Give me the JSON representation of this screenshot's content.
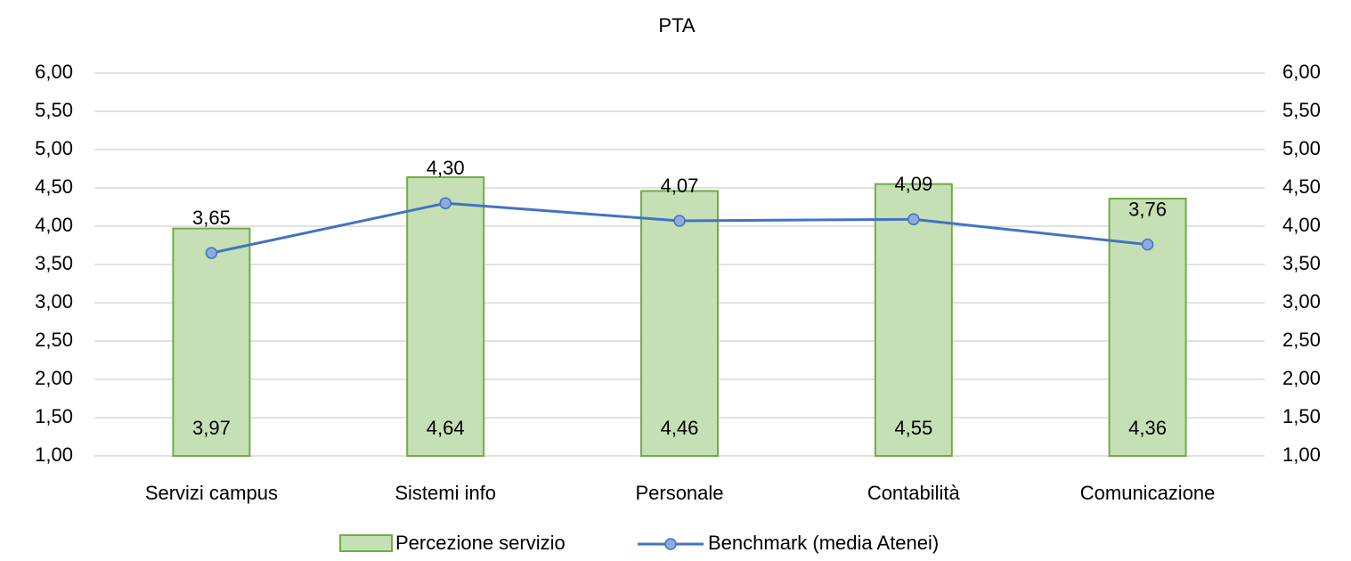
{
  "chart_data": {
    "type": "bar",
    "title": "PTA",
    "categories": [
      "Servizi campus",
      "Sistemi info",
      "Personale",
      "Contabilità",
      "Comunicazione"
    ],
    "series": [
      {
        "name": "Percezione servizio",
        "type": "bar",
        "color": "#c5e0b4",
        "edge_color": "#70ad47",
        "values": [
          3.97,
          4.64,
          4.46,
          4.55,
          4.36
        ],
        "value_labels": [
          "3,97",
          "4,64",
          "4,46",
          "4,55",
          "4,36"
        ]
      },
      {
        "name": "Benchmark (media Atenei)",
        "type": "line",
        "axis": "y2",
        "color": "#4472c4",
        "marker_color": "#8faadc",
        "values": [
          3.65,
          4.3,
          4.07,
          4.09,
          3.76
        ],
        "value_labels": [
          "3,65",
          "4,30",
          "4,07",
          "4,09",
          "3,76"
        ]
      }
    ],
    "ylim": [
      1,
      6
    ],
    "yticks": [
      {
        "value": 1,
        "label": "1,00"
      },
      {
        "value": 1.5,
        "label": "1,50"
      },
      {
        "value": 2,
        "label": "2,00"
      },
      {
        "value": 2.5,
        "label": "2,50"
      },
      {
        "value": 3,
        "label": "3,00"
      },
      {
        "value": 3.5,
        "label": "3,50"
      },
      {
        "value": 4,
        "label": "4,00"
      },
      {
        "value": 4.5,
        "label": "4,50"
      },
      {
        "value": 5,
        "label": "5,00"
      },
      {
        "value": 5.5,
        "label": "5,50"
      },
      {
        "value": 6,
        "label": "6,00"
      }
    ],
    "y2lim": [
      1,
      6
    ],
    "y2ticks": [
      {
        "value": 1,
        "label": "1,00"
      },
      {
        "value": 1.5,
        "label": "1,50"
      },
      {
        "value": 2,
        "label": "2,00"
      },
      {
        "value": 2.5,
        "label": "2,50"
      },
      {
        "value": 3,
        "label": "3,00"
      },
      {
        "value": 3.5,
        "label": "3,50"
      },
      {
        "value": 4,
        "label": "4,00"
      },
      {
        "value": 4.5,
        "label": "4,50"
      },
      {
        "value": 5,
        "label": "5,00"
      },
      {
        "value": 5.5,
        "label": "5,50"
      },
      {
        "value": 6,
        "label": "6,00"
      }
    ],
    "grid": true,
    "legend": "bottom"
  }
}
